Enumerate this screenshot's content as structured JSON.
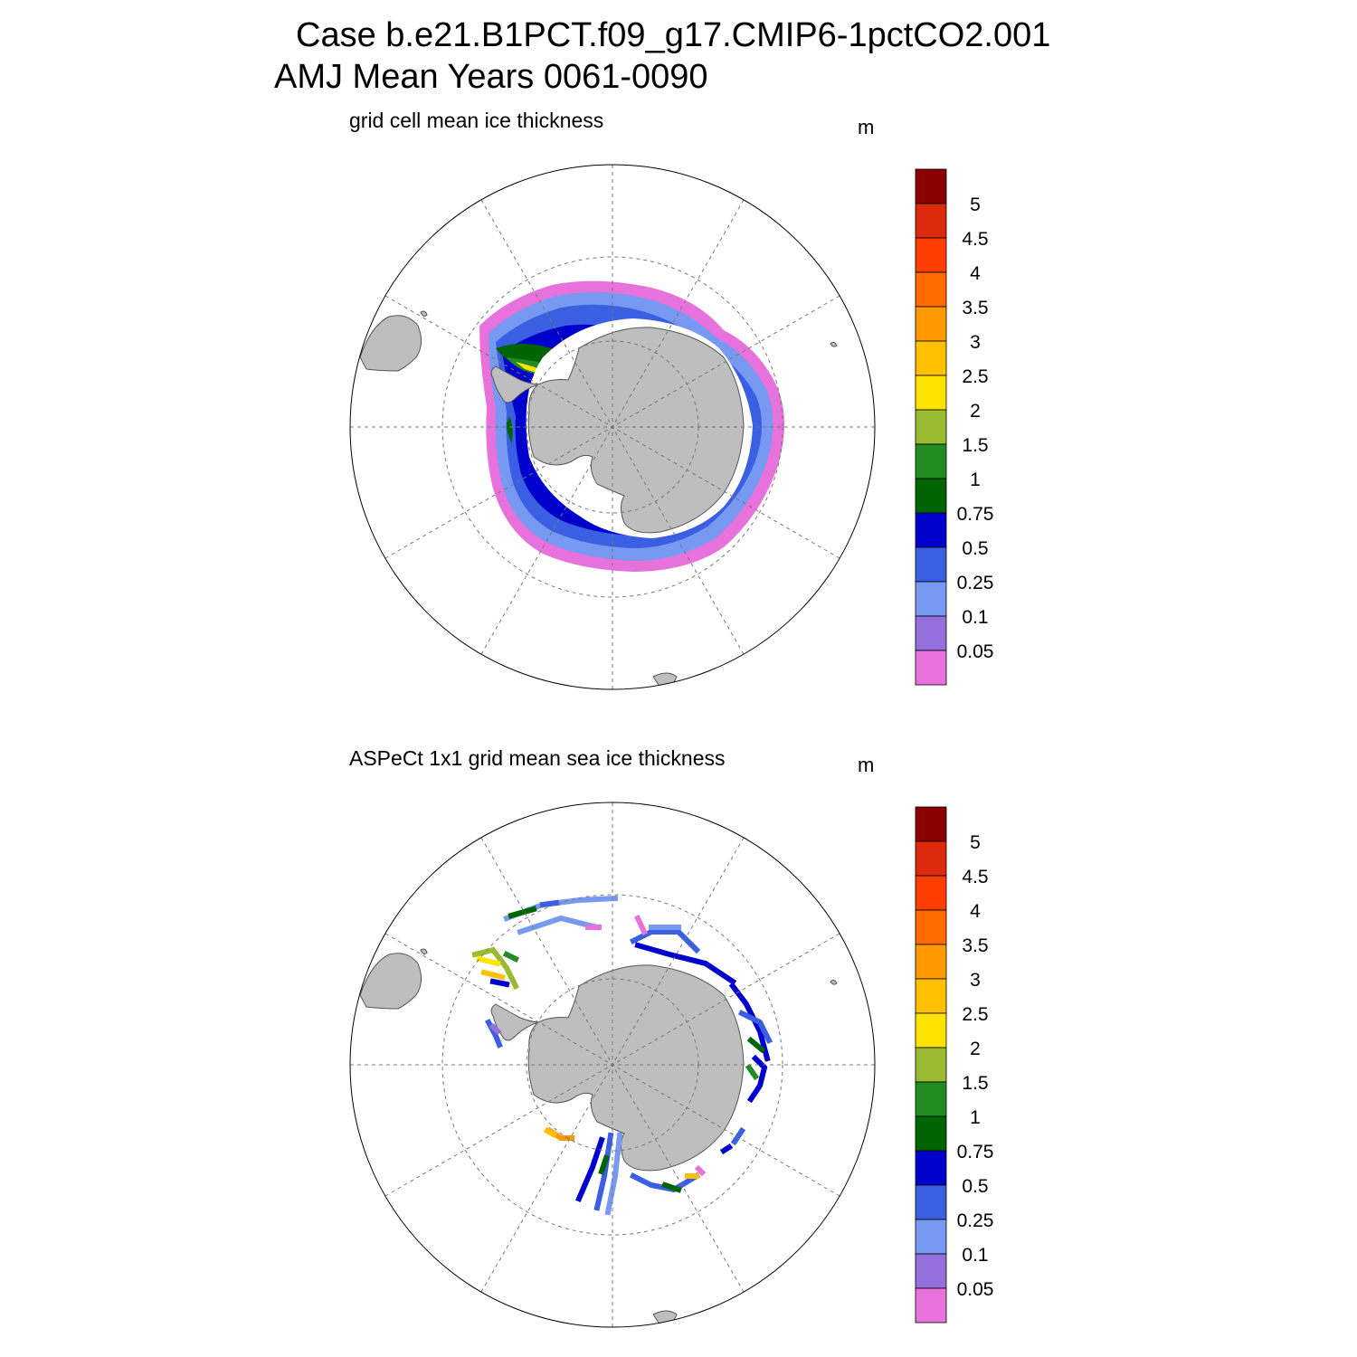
{
  "header": {
    "case_title": "Case b.e21.B1PCT.f09_g17.CMIP6-1pctCO2.001",
    "period_title": "AMJ Mean   Years 0061-0090"
  },
  "panels": [
    {
      "title": "grid cell mean ice thickness",
      "units": "m"
    },
    {
      "title": "ASPeCt 1x1 grid mean sea ice thickness",
      "units": "m"
    }
  ],
  "colorbar": {
    "labels": [
      "5",
      "4.5",
      "4",
      "3.5",
      "3",
      "2.5",
      "2",
      "1.5",
      "1",
      "0.75",
      "0.5",
      "0.25",
      "0.1",
      "0.05"
    ],
    "colors": [
      "#8b0000",
      "#dc2a0e",
      "#ff3f00",
      "#ff6a00",
      "#ff9900",
      "#ffc000",
      "#ffe300",
      "#9aba32",
      "#228b22",
      "#006400",
      "#0000cd",
      "#3b5fe3",
      "#7799f2",
      "#9370db",
      "#e872dc"
    ]
  },
  "map_colors": {
    "land": "#bebebe",
    "coast": "#555555",
    "grid": "#777777"
  }
}
